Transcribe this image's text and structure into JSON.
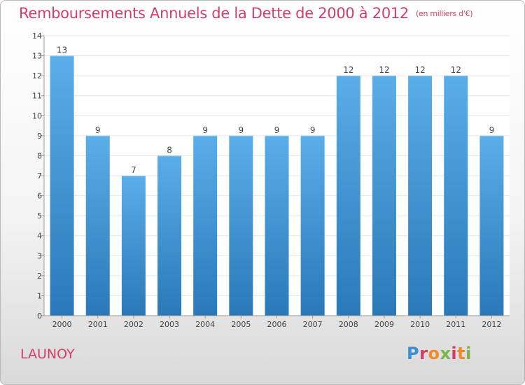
{
  "title": "Remboursements Annuels de la Dette de 2000 à 2012",
  "subtitle": "(en milliers d'€)",
  "place": "LAUNOY",
  "logo_text": "Proxiti",
  "colors": {
    "bar_top": "#5aaee9",
    "bar_bottom": "#2a78b8",
    "title": "#d43d6a"
  },
  "chart_data": {
    "type": "bar",
    "title": "Remboursements Annuels de la Dette de 2000 à 2012",
    "categories": [
      "2000",
      "2001",
      "2002",
      "2003",
      "2004",
      "2005",
      "2006",
      "2007",
      "2008",
      "2009",
      "2010",
      "2011",
      "2012"
    ],
    "values": [
      13,
      9,
      7,
      8,
      9,
      9,
      9,
      9,
      12,
      12,
      12,
      12,
      9
    ],
    "yticks": [
      0,
      1,
      2,
      3,
      4,
      5,
      6,
      7,
      8,
      9,
      10,
      11,
      12,
      13,
      14
    ],
    "ylim": [
      0,
      14
    ],
    "xlabel": "",
    "ylabel": "",
    "grid": true
  }
}
